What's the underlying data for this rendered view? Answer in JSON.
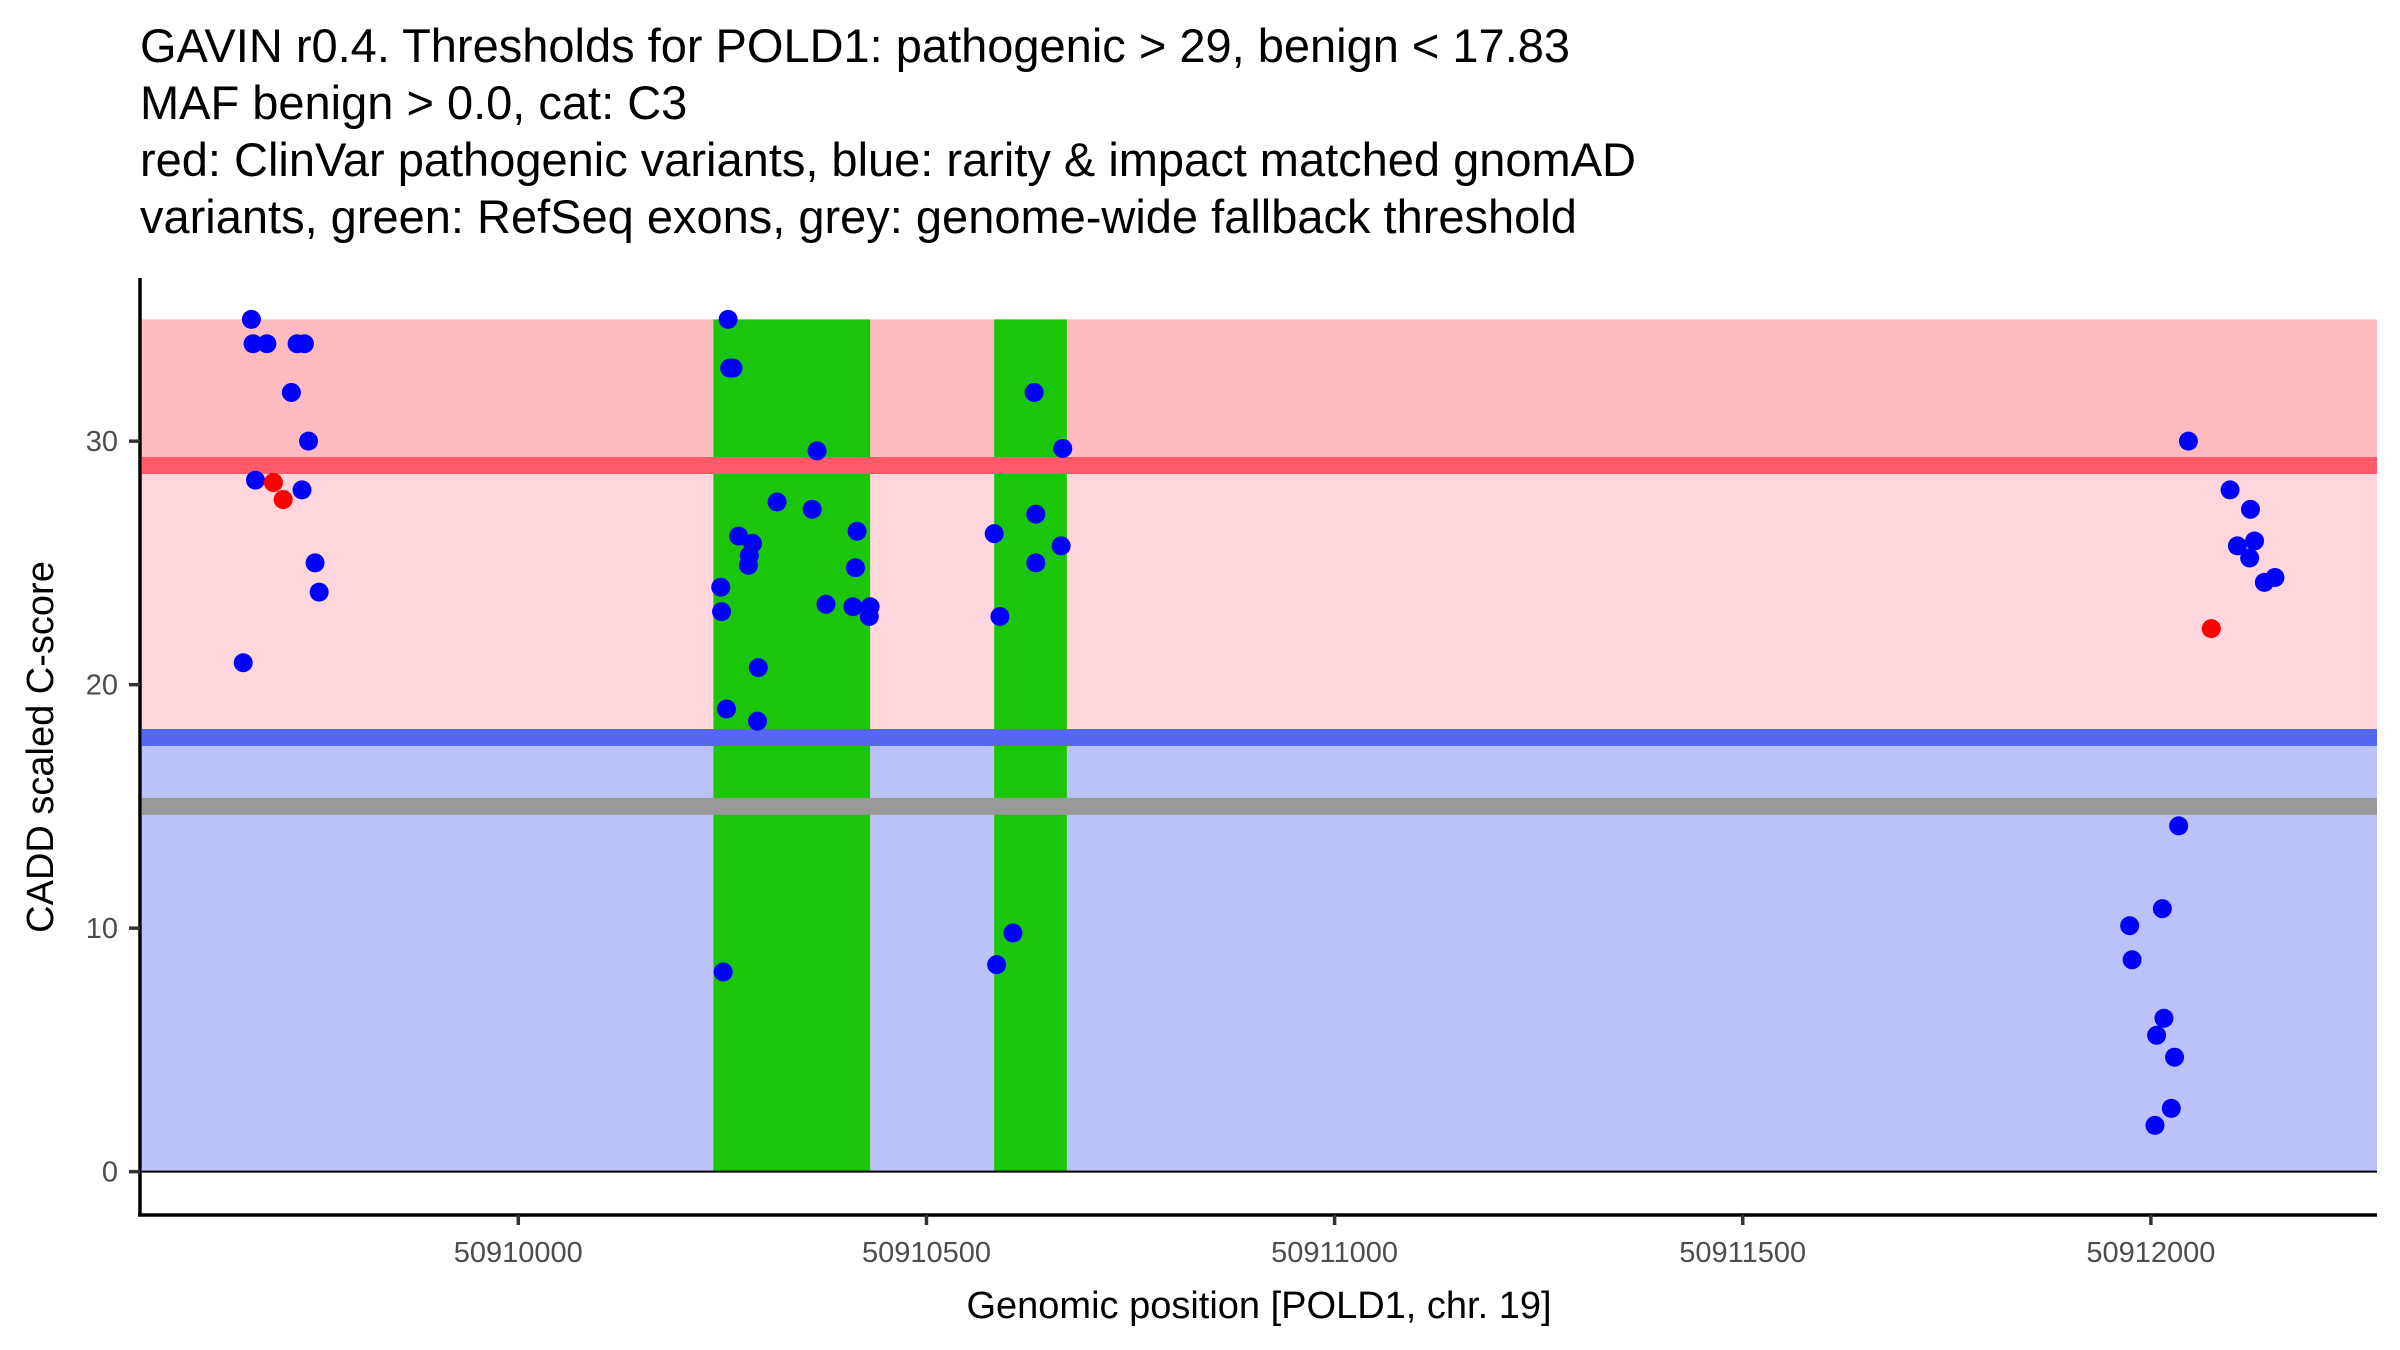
{
  "chart_data": {
    "type": "scatter",
    "title_lines": [
      "GAVIN r0.4. Thresholds for POLD1: pathogenic > 29, benign < 17.83",
      "MAF benign > 0.0, cat: C3",
      "red: ClinVar pathogenic variants, blue: rarity & impact matched gnomAD",
      "variants, green: RefSeq exons, grey: genome-wide fallback threshold"
    ],
    "xlabel": "Genomic position [POLD1, chr. 19]",
    "ylabel": "CADD scaled C-score",
    "xlim": [
      50909539,
      50912277
    ],
    "ylim": [
      -1.78,
      36.7
    ],
    "x_ticks": [
      {
        "value": 50910000,
        "label": "50910000"
      },
      {
        "value": 50910500,
        "label": "50910500"
      },
      {
        "value": 50911000,
        "label": "50911000"
      },
      {
        "value": 50911500,
        "label": "50911500"
      },
      {
        "value": 50912000,
        "label": "50912000"
      }
    ],
    "y_ticks": [
      {
        "value": 0,
        "label": "0"
      },
      {
        "value": 10,
        "label": "10"
      },
      {
        "value": 20,
        "label": "20"
      },
      {
        "value": 30,
        "label": "30"
      }
    ],
    "grid": false,
    "colors": {
      "pathogenic_zone": "#fdbbc0",
      "pathogenic_line": "#fe5a68",
      "vus_zone": "#ffd6db",
      "benign_line": "#5469f0",
      "benign_zone": "#bbc1f9",
      "fallback_line": "#999999",
      "exon": "#1bc608",
      "clinvar_point": "#ff0000",
      "gnomad_point": "#0000ff"
    },
    "thresholds": {
      "pathogenic": 29,
      "benign": 17.83,
      "fallback": 15,
      "top": 35,
      "bottom": 0
    },
    "exons": [
      {
        "start": 50910239,
        "end": 50910431
      },
      {
        "start": 50910583,
        "end": 50910672
      }
    ],
    "series": [
      {
        "name": "ClinVar pathogenic variants",
        "color": "#ff0000",
        "points": [
          {
            "x": 50909700,
            "y": 28.3
          },
          {
            "x": 50909712,
            "y": 27.6
          },
          {
            "x": 50912074,
            "y": 22.3
          }
        ]
      },
      {
        "name": "rarity & impact matched gnomAD variants",
        "color": "#0000ff",
        "points": [
          {
            "x": 50909673,
            "y": 35.0
          },
          {
            "x": 50909675,
            "y": 34.0
          },
          {
            "x": 50909692,
            "y": 34.0
          },
          {
            "x": 50909729,
            "y": 34.0
          },
          {
            "x": 50909738,
            "y": 34.0
          },
          {
            "x": 50909722,
            "y": 32.0
          },
          {
            "x": 50909743,
            "y": 30.0
          },
          {
            "x": 50909678,
            "y": 28.4
          },
          {
            "x": 50909735,
            "y": 28.0
          },
          {
            "x": 50909751,
            "y": 25.0
          },
          {
            "x": 50909756,
            "y": 23.8
          },
          {
            "x": 50909663,
            "y": 20.9
          },
          {
            "x": 50910257,
            "y": 35.0
          },
          {
            "x": 50910259,
            "y": 33.0
          },
          {
            "x": 50910263,
            "y": 33.0
          },
          {
            "x": 50910366,
            "y": 29.6
          },
          {
            "x": 50910317,
            "y": 27.5
          },
          {
            "x": 50910360,
            "y": 27.2
          },
          {
            "x": 50910415,
            "y": 26.3
          },
          {
            "x": 50910270,
            "y": 26.1
          },
          {
            "x": 50910287,
            "y": 25.8
          },
          {
            "x": 50910283,
            "y": 25.3
          },
          {
            "x": 50910282,
            "y": 24.9
          },
          {
            "x": 50910413,
            "y": 24.8
          },
          {
            "x": 50910248,
            "y": 24.0
          },
          {
            "x": 50910249,
            "y": 23.0
          },
          {
            "x": 50910377,
            "y": 23.3
          },
          {
            "x": 50910410,
            "y": 23.2
          },
          {
            "x": 50910431,
            "y": 23.2
          },
          {
            "x": 50910430,
            "y": 22.8
          },
          {
            "x": 50910294,
            "y": 20.7
          },
          {
            "x": 50910255,
            "y": 19.0
          },
          {
            "x": 50910293,
            "y": 18.5
          },
          {
            "x": 50910251,
            "y": 8.2
          },
          {
            "x": 50910632,
            "y": 32.0
          },
          {
            "x": 50910667,
            "y": 29.7
          },
          {
            "x": 50910634,
            "y": 27.0
          },
          {
            "x": 50910583,
            "y": 26.2
          },
          {
            "x": 50910665,
            "y": 25.7
          },
          {
            "x": 50910634,
            "y": 25.0
          },
          {
            "x": 50910590,
            "y": 22.8
          },
          {
            "x": 50910606,
            "y": 9.8
          },
          {
            "x": 50910586,
            "y": 8.5
          },
          {
            "x": 50912046,
            "y": 30.0
          },
          {
            "x": 50912097,
            "y": 28.0
          },
          {
            "x": 50912122,
            "y": 27.2
          },
          {
            "x": 50912127,
            "y": 25.9
          },
          {
            "x": 50912106,
            "y": 25.7
          },
          {
            "x": 50912121,
            "y": 25.2
          },
          {
            "x": 50912152,
            "y": 24.4
          },
          {
            "x": 50912139,
            "y": 24.2
          },
          {
            "x": 50912034,
            "y": 14.2
          },
          {
            "x": 50912014,
            "y": 10.8
          },
          {
            "x": 50911974,
            "y": 10.1
          },
          {
            "x": 50911977,
            "y": 8.7
          },
          {
            "x": 50912016,
            "y": 6.3
          },
          {
            "x": 50912007,
            "y": 5.6
          },
          {
            "x": 50912029,
            "y": 4.7
          },
          {
            "x": 50912025,
            "y": 2.6
          },
          {
            "x": 50912005,
            "y": 1.9
          }
        ]
      }
    ]
  }
}
